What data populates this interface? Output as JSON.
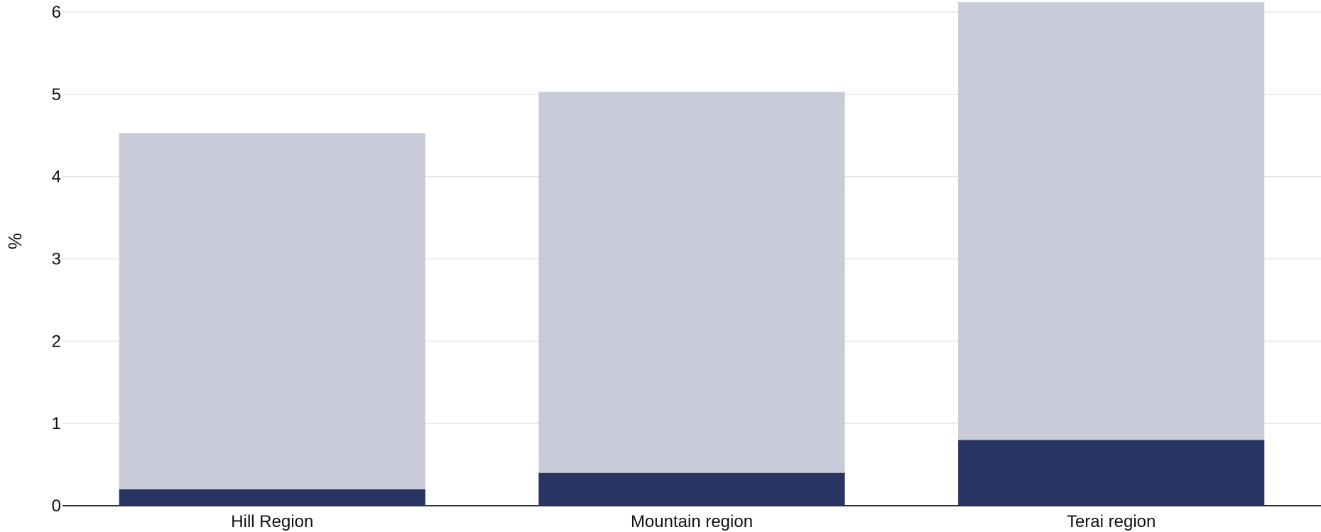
{
  "chart_data": {
    "type": "bar",
    "stacked": true,
    "categories": [
      "Hill Region",
      "Mountain region",
      "Terai region"
    ],
    "series": [
      {
        "values": [
          0.2,
          0.4,
          0.8
        ],
        "color": "#283563"
      },
      {
        "values": [
          4.33,
          4.63,
          5.32
        ],
        "color": "#c9cbd8"
      }
    ],
    "title": "",
    "xlabel": "",
    "ylabel": "%",
    "ylim": [
      0,
      6
    ],
    "yticks": [
      "0",
      "1",
      "2",
      "3",
      "4",
      "5",
      "6"
    ],
    "grid": true,
    "legend": "none"
  }
}
